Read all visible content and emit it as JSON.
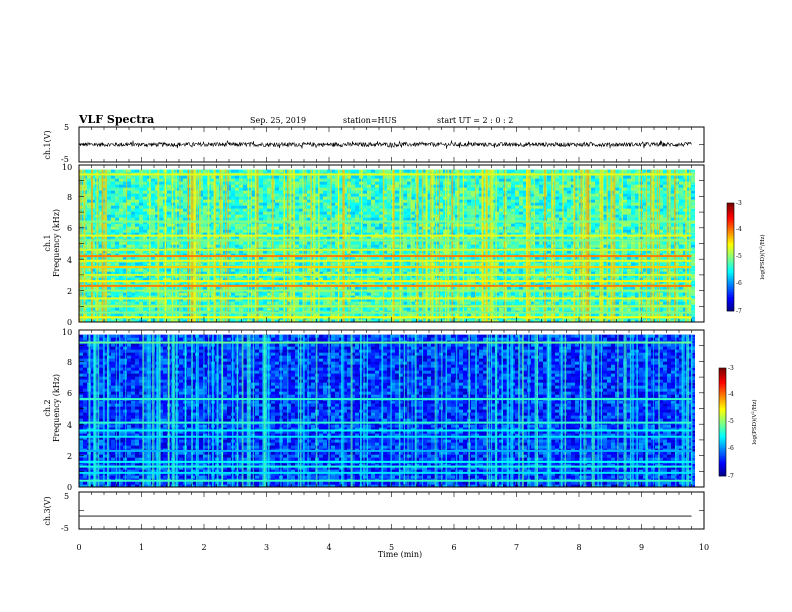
{
  "header": {
    "title": "VLF Spectra",
    "date": "Sep. 25, 2019",
    "station": "station=HUS",
    "start": "start  UT =   2 : 0  : 2"
  },
  "colors": {
    "waveform": "#000000",
    "colormap": [
      "#00007f",
      "#0000ff",
      "#0080ff",
      "#00ffff",
      "#80ff80",
      "#ffff00",
      "#ff8000",
      "#ff0000",
      "#7f0000"
    ]
  },
  "chart_data": [
    {
      "type": "line",
      "panel": "channel-1-waveform",
      "ylabel": "ch.1(V)",
      "ylim": [
        -5,
        5
      ],
      "yticks": [
        "5",
        "-5"
      ],
      "xlim": [
        0,
        10
      ],
      "x_end": 9.8,
      "series": [
        {
          "description_value": 0,
          "values_range": [
            -0.6,
            0.6
          ]
        }
      ]
    },
    {
      "type": "heatmap",
      "panel": "channel-1-spectrogram",
      "ylabel": "ch.1\nFrequency (kHz)",
      "ylabel_lines": [
        "ch.1",
        "Frequency (kHz)"
      ],
      "ylim": [
        0,
        10
      ],
      "yticks": [
        "0",
        "2",
        "4",
        "6",
        "8",
        "10"
      ],
      "xlim": [
        0,
        10
      ],
      "x_end": 9.8,
      "upper_cutoff_khz": 9.7,
      "colorbar": {
        "label": "log(PSD)(V²/Hz)",
        "label_base": "log(PSD)(V",
        "label_sup": "2",
        "label_tail": "/Hz)",
        "range": [
          -7,
          -3
        ],
        "ticks": [
          "-3",
          "-4",
          "-5",
          "-6",
          "-7"
        ]
      },
      "background_level": -5.3,
      "tone_lines_khz": [
        0.3,
        0.6,
        1.0,
        1.5,
        2.0,
        2.3,
        2.6,
        3.0,
        3.5,
        3.9,
        4.2,
        4.6,
        5.2,
        5.5,
        6.4,
        9.4
      ],
      "tone_levels": [
        -4.5,
        -5.0,
        -4.8,
        -4.6,
        -4.9,
        -4.0,
        -4.5,
        -4.7,
        -4.3,
        -4.6,
        -4.0,
        -4.7,
        -5.0,
        -4.6,
        -5.0,
        -4.6
      ]
    },
    {
      "type": "heatmap",
      "panel": "channel-2-spectrogram",
      "ylabel": "ch.2\nFrequency (kHz)",
      "ylabel_lines": [
        "ch.2",
        "Frequency (kHz)"
      ],
      "ylim": [
        0,
        10
      ],
      "yticks": [
        "0",
        "2",
        "4",
        "6",
        "8",
        "10"
      ],
      "xlim": [
        0,
        10
      ],
      "x_end": 9.8,
      "upper_cutoff_khz": 9.7,
      "colorbar": {
        "label": "log(PSD)(V²/Hz)",
        "label_base": "log(PSD)(V",
        "label_sup": "2",
        "label_tail": "/Hz)",
        "range": [
          -7,
          -3
        ],
        "ticks": [
          "-3",
          "-4",
          "-5",
          "-6",
          "-7"
        ]
      },
      "background_level": -6.3,
      "tone_lines_khz": [
        0.4,
        0.9,
        1.3,
        1.6,
        2.3,
        3.2,
        3.6,
        4.1,
        5.6,
        9.2
      ],
      "tone_levels": [
        -5.3,
        -5.6,
        -5.4,
        -5.5,
        -5.8,
        -5.6,
        -5.5,
        -5.3,
        -5.3,
        -5.1
      ]
    },
    {
      "type": "line",
      "panel": "channel-3-waveform",
      "ylabel": "ch.3(V)",
      "ylim": [
        -5,
        5
      ],
      "yticks": [
        "5",
        "0",
        "-5"
      ],
      "xlim": [
        0,
        10
      ],
      "x_end": 9.8,
      "series": [
        {
          "flat_value": -1.5
        }
      ]
    }
  ],
  "xaxis": {
    "label": "Time  (min)",
    "ticks": [
      "0",
      "1",
      "2",
      "3",
      "4",
      "5",
      "6",
      "7",
      "8",
      "9",
      "10"
    ]
  }
}
